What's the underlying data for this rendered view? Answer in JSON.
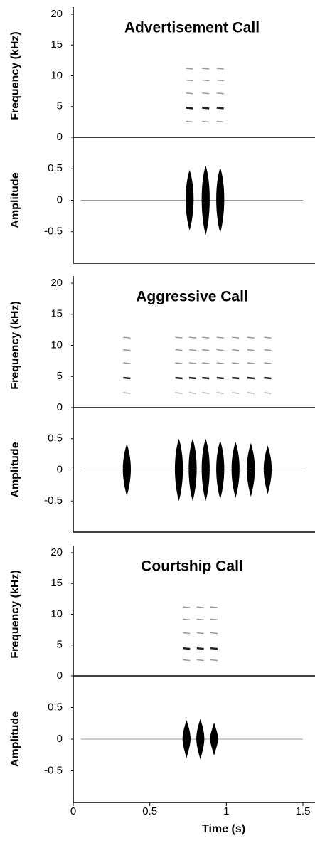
{
  "chart_data": [
    {
      "type": "call",
      "title": "Advertisement Call",
      "freq_label": "Frequency (kHz)",
      "amp_label": "Amplitude",
      "freq_ylim": [
        0,
        20
      ],
      "freq_yticks": [
        0,
        5,
        10,
        15,
        20
      ],
      "amp_ylim": [
        -1,
        1
      ],
      "amp_yticks": [
        -0.5,
        0,
        0.5
      ],
      "xlim": [
        0,
        1.5
      ],
      "harmonics": [
        2.6,
        4.8,
        7.2,
        9.3,
        11.2
      ],
      "x": [
        0.76,
        0.865,
        0.96
      ],
      "values": [
        0.48,
        0.55,
        0.52
      ]
    },
    {
      "type": "call",
      "title": "Aggressive Call",
      "freq_label": "Frequency (kHz)",
      "amp_label": "Amplitude",
      "freq_ylim": [
        0,
        20
      ],
      "freq_yticks": [
        0,
        5,
        10,
        15,
        20
      ],
      "amp_ylim": [
        -1,
        1
      ],
      "amp_yticks": [
        -0.5,
        0,
        0.5
      ],
      "xlim": [
        0,
        1.5
      ],
      "harmonics": [
        2.4,
        4.8,
        7.2,
        9.3,
        11.3
      ],
      "x": [
        0.35,
        0.69,
        0.78,
        0.865,
        0.96,
        1.06,
        1.16,
        1.27
      ],
      "values": [
        0.42,
        0.5,
        0.5,
        0.5,
        0.47,
        0.45,
        0.43,
        0.39
      ]
    },
    {
      "type": "call",
      "title": "Courtship Call",
      "freq_label": "Frequency (kHz)",
      "amp_label": "Amplitude",
      "freq_ylim": [
        0,
        20
      ],
      "freq_yticks": [
        0,
        5,
        10,
        15,
        20
      ],
      "amp_ylim": [
        -1,
        1
      ],
      "amp_yticks": [
        -0.5,
        0,
        0.5
      ],
      "xlim": [
        0,
        1.5
      ],
      "xticks": [
        0,
        0.5,
        1,
        1.5
      ],
      "xlabel": "Time (s)",
      "harmonics": [
        2.6,
        4.5,
        7.0,
        9.2,
        11.2
      ],
      "x": [
        0.74,
        0.83,
        0.92
      ],
      "values": [
        0.3,
        0.32,
        0.26
      ]
    }
  ]
}
